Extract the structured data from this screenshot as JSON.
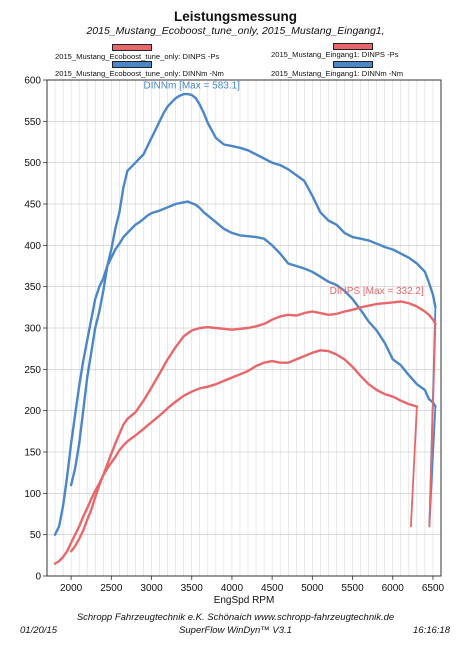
{
  "header": {
    "title": "Leistungsmessung",
    "subtitle": "2015_Mustang_Ecoboost_tune_only, 2015_Mustang_Eingang1,"
  },
  "legend": {
    "items": [
      {
        "label": "2015_Mustang_Ecoboost_tune_only: DINPS -Ps",
        "color": "#e8676a"
      },
      {
        "label": "2015_Mustang_Eingang1: DINPS -Ps",
        "color": "#e8676a"
      },
      {
        "label": "2015_Mustang_Ecoboost_tune_only: DINNm -Nm",
        "color": "#4a86c8"
      },
      {
        "label": "2015_Mustang_Eingang1: DINNm -Nm",
        "color": "#4a86c8"
      }
    ]
  },
  "footer": {
    "company": "Schropp Fahrzeugtechnik e.K.     Schönaich    www.schropp-fahrzeugtechnik.de",
    "software": "SuperFlow WinDyn™ V3.1",
    "date": "01/20/15",
    "time": "16:16:18"
  },
  "chart_data": {
    "type": "line",
    "title": "Leistungsmessung",
    "xlabel": "EngSpd RPM",
    "ylabel": "",
    "xlim": [
      1700,
      6600
    ],
    "ylim": [
      0,
      600
    ],
    "xticks": [
      2000,
      2500,
      3000,
      3500,
      4000,
      4500,
      5000,
      5500,
      6000,
      6500
    ],
    "yticks": [
      0,
      50,
      100,
      150,
      200,
      250,
      300,
      350,
      400,
      450,
      500,
      550,
      600
    ],
    "grid": true,
    "annotations": [
      {
        "text": "DINNm  [Max = 583.1]",
        "color": "#4a86c8",
        "x": 3500,
        "y": 590
      },
      {
        "text": "DINPS  [Max = 332.2]",
        "color": "#e8676a",
        "x": 5800,
        "y": 341
      }
    ],
    "series": [
      {
        "name": "2015_Mustang_Ecoboost_tune_only: DINNm -Nm",
        "color": "#4a86c8",
        "x": [
          1800,
          1850,
          1900,
          1950,
          2000,
          2050,
          2100,
          2150,
          2200,
          2250,
          2300,
          2350,
          2400,
          2450,
          2500,
          2550,
          2600,
          2650,
          2700,
          2750,
          2800,
          2850,
          2900,
          2950,
          3000,
          3100,
          3200,
          3300,
          3400,
          3450,
          3500,
          3550,
          3600,
          3650,
          3700,
          3800,
          3900,
          4000,
          4100,
          4200,
          4300,
          4400,
          4500,
          4600,
          4700,
          4800,
          4900,
          5000,
          5100,
          5200,
          5300,
          5400,
          5500,
          5600,
          5700,
          5800,
          5900,
          6000,
          6100,
          6200,
          6300,
          6400,
          6450,
          6500,
          6530
        ],
        "values": [
          50,
          60,
          85,
          120,
          160,
          195,
          230,
          260,
          285,
          310,
          335,
          350,
          360,
          375,
          385,
          395,
          402,
          410,
          415,
          420,
          425,
          428,
          432,
          436,
          439,
          442,
          446,
          450,
          452,
          453,
          451,
          449,
          445,
          440,
          436,
          428,
          420,
          415,
          412,
          411,
          410,
          408,
          400,
          390,
          378,
          375,
          372,
          368,
          362,
          356,
          352,
          345,
          335,
          322,
          308,
          297,
          282,
          262,
          255,
          243,
          232,
          225,
          214,
          210,
          205
        ]
      },
      {
        "name": "2015_Mustang_Ecoboost_tune_only: DINPS -Ps",
        "color": "#e8676a",
        "x": [
          1800,
          1850,
          1900,
          1950,
          2000,
          2050,
          2100,
          2150,
          2200,
          2250,
          2300,
          2350,
          2400,
          2450,
          2500,
          2550,
          2600,
          2650,
          2700,
          2800,
          2900,
          3000,
          3100,
          3200,
          3300,
          3400,
          3500,
          3600,
          3700,
          3800,
          3900,
          4000,
          4100,
          4200,
          4300,
          4400,
          4500,
          4600,
          4700,
          4800,
          4900,
          5000,
          5100,
          5200,
          5300,
          5400,
          5500,
          5600,
          5700,
          5800,
          5900,
          6000,
          6100,
          6200,
          6300
        ],
        "values": [
          15,
          18,
          23,
          30,
          40,
          50,
          60,
          72,
          82,
          93,
          103,
          112,
          122,
          130,
          137,
          144,
          152,
          158,
          163,
          170,
          178,
          186,
          194,
          203,
          211,
          218,
          223,
          227,
          229,
          232,
          236,
          240,
          244,
          248,
          254,
          258,
          260,
          258,
          258,
          262,
          266,
          270,
          273,
          272,
          268,
          262,
          253,
          242,
          232,
          225,
          220,
          217,
          212,
          208,
          205
        ]
      },
      {
        "name": "2015_Mustang_Eingang1: DINNm -Nm",
        "color": "#4a86c8",
        "x": [
          2000,
          2050,
          2100,
          2150,
          2200,
          2250,
          2300,
          2350,
          2400,
          2450,
          2500,
          2550,
          2600,
          2650,
          2700,
          2750,
          2800,
          2850,
          2900,
          2950,
          3000,
          3050,
          3100,
          3150,
          3200,
          3250,
          3300,
          3350,
          3400,
          3450,
          3500,
          3550,
          3600,
          3650,
          3700,
          3800,
          3900,
          4000,
          4100,
          4200,
          4300,
          4400,
          4500,
          4600,
          4700,
          4800,
          4900,
          5000,
          5100,
          5200,
          5300,
          5400,
          5500,
          5600,
          5700,
          5800,
          5900,
          6000,
          6100,
          6200,
          6300,
          6400,
          6450,
          6500,
          6530
        ],
        "values": [
          110,
          130,
          160,
          200,
          240,
          270,
          300,
          320,
          345,
          375,
          395,
          420,
          440,
          470,
          490,
          495,
          500,
          505,
          510,
          520,
          530,
          540,
          550,
          560,
          568,
          573,
          578,
          581,
          583,
          583,
          582,
          578,
          570,
          560,
          548,
          530,
          522,
          520,
          518,
          515,
          510,
          505,
          500,
          497,
          492,
          485,
          478,
          460,
          440,
          430,
          425,
          415,
          410,
          408,
          406,
          402,
          398,
          395,
          390,
          385,
          378,
          368,
          355,
          340,
          325
        ]
      },
      {
        "name": "2015_Mustang_Eingang1: DINPS -Ps",
        "color": "#e8676a",
        "x": [
          2000,
          2050,
          2100,
          2150,
          2200,
          2250,
          2300,
          2350,
          2400,
          2450,
          2500,
          2550,
          2600,
          2650,
          2700,
          2800,
          2900,
          3000,
          3100,
          3200,
          3300,
          3400,
          3500,
          3600,
          3700,
          3800,
          3900,
          4000,
          4100,
          4200,
          4300,
          4400,
          4500,
          4600,
          4700,
          4800,
          4900,
          5000,
          5100,
          5200,
          5300,
          5400,
          5500,
          5600,
          5700,
          5800,
          5900,
          6000,
          6100,
          6200,
          6300,
          6400,
          6450,
          6500,
          6530
        ],
        "values": [
          30,
          36,
          45,
          55,
          68,
          80,
          95,
          110,
          122,
          135,
          148,
          160,
          172,
          183,
          190,
          198,
          212,
          228,
          245,
          262,
          277,
          290,
          297,
          300,
          301,
          300,
          299,
          298,
          299,
          300,
          302,
          305,
          310,
          314,
          316,
          315,
          318,
          320,
          318,
          316,
          317,
          320,
          322,
          325,
          327,
          329,
          330,
          331,
          332,
          330,
          326,
          320,
          316,
          310,
          305
        ]
      }
    ]
  }
}
